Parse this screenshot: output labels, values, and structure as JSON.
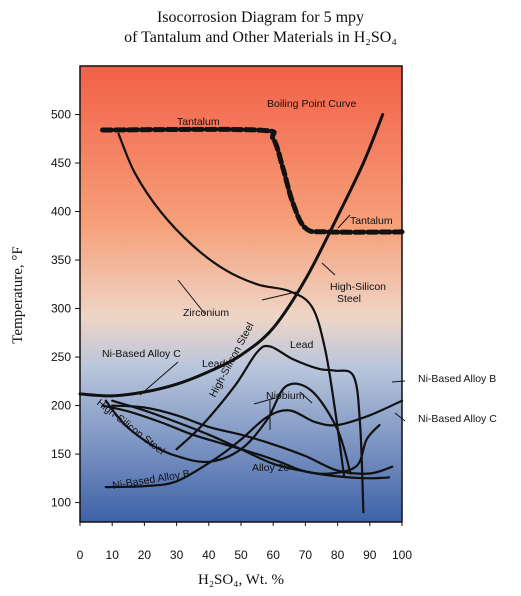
{
  "chart_data": {
    "type": "line",
    "title_line1": "Isocorrosion Diagram for 5 mpy",
    "title_line2": "of Tantalum and Other Materials in H₂SO₄",
    "xlabel": "H₂SO₄, Wt. %",
    "ylabel": "Temperature, °F",
    "xlim": [
      0,
      100
    ],
    "ylim": [
      80,
      550
    ],
    "xticks": [
      "0",
      "10",
      "20",
      "30",
      "40",
      "50",
      "60",
      "70",
      "80",
      "90",
      "100"
    ],
    "yticks": [
      "100",
      "150",
      "200",
      "250",
      "300",
      "350",
      "400",
      "450",
      "500"
    ],
    "background": {
      "top": "#f26048",
      "bottom": "#3e62a8"
    },
    "colors": {
      "curves": "#111111",
      "tantalum": "#1a2f9e"
    },
    "series": [
      {
        "id": "tantalum",
        "label": "Tantalum",
        "label2": "Tantalum",
        "points": [
          [
            7,
            484
          ],
          [
            55,
            484
          ],
          [
            60,
            475
          ],
          [
            63,
            445
          ],
          [
            66,
            410
          ],
          [
            70,
            383
          ],
          [
            77,
            379
          ],
          [
            100,
            379
          ]
        ]
      },
      {
        "id": "boiling",
        "label": "Boiling Point Curve",
        "points": [
          [
            0,
            212
          ],
          [
            10,
            210
          ],
          [
            20,
            214
          ],
          [
            30,
            222
          ],
          [
            40,
            235
          ],
          [
            50,
            252
          ],
          [
            60,
            280
          ],
          [
            70,
            330
          ],
          [
            80,
            395
          ],
          [
            88,
            450
          ],
          [
            94,
            500
          ]
        ]
      },
      {
        "id": "zirconium",
        "label": "Zirconium",
        "points": [
          [
            12,
            480
          ],
          [
            17,
            440
          ],
          [
            25,
            400
          ],
          [
            35,
            365
          ],
          [
            45,
            340
          ],
          [
            55,
            325
          ],
          [
            65,
            318
          ],
          [
            72,
            302
          ],
          [
            76,
            260
          ],
          [
            79,
            200
          ],
          [
            82,
            128
          ]
        ]
      },
      {
        "id": "lead",
        "label": "Lead",
        "label2": "Lead",
        "points": [
          [
            30,
            155
          ],
          [
            38,
            180
          ],
          [
            48,
            220
          ],
          [
            55,
            255
          ],
          [
            59,
            261
          ],
          [
            66,
            248
          ],
          [
            74,
            238
          ],
          [
            79,
            236
          ],
          [
            85,
            230
          ],
          [
            87,
            180
          ],
          [
            88,
            90
          ]
        ]
      },
      {
        "id": "hisi",
        "label": "High-Silicon Steel",
        "label2": "High-Silicon Steel",
        "label3": "High-Silicon Steel",
        "points": [
          [
            8,
            205
          ],
          [
            14,
            180
          ],
          [
            22,
            160
          ],
          [
            30,
            148
          ],
          [
            40,
            142
          ],
          [
            50,
            155
          ],
          [
            58,
            185
          ],
          [
            64,
            220
          ],
          [
            72,
            215
          ],
          [
            80,
            175
          ],
          [
            84,
            130
          ]
        ]
      },
      {
        "id": "nbAlloyB",
        "label": "Ni-Based Alloy B",
        "label2": "Ni-Based Alloy B",
        "points": [
          [
            8,
            116
          ],
          [
            20,
            117
          ],
          [
            30,
            122
          ],
          [
            42,
            145
          ],
          [
            50,
            165
          ],
          [
            58,
            188
          ],
          [
            65,
            195
          ],
          [
            73,
            183
          ],
          [
            80,
            180
          ],
          [
            90,
            190
          ],
          [
            100,
            205
          ]
        ]
      },
      {
        "id": "niAlloyC",
        "label": "Ni-Based Alloy C",
        "label2": "Ni-Based Alloy C",
        "points": [
          [
            7,
            200
          ],
          [
            15,
            194
          ],
          [
            25,
            183
          ],
          [
            35,
            170
          ],
          [
            45,
            160
          ],
          [
            55,
            150
          ],
          [
            62,
            142
          ],
          [
            70,
            132
          ],
          [
            78,
            130
          ],
          [
            86,
            138
          ],
          [
            89,
            165
          ],
          [
            93,
            180
          ]
        ]
      },
      {
        "id": "niobium",
        "label": "Niobium",
        "points": [
          [
            10,
            200
          ],
          [
            20,
            198
          ],
          [
            30,
            190
          ],
          [
            40,
            178
          ],
          [
            50,
            170
          ],
          [
            60,
            160
          ],
          [
            70,
            148
          ],
          [
            80,
            133
          ],
          [
            90,
            130
          ],
          [
            97,
            137
          ]
        ]
      },
      {
        "id": "alloy20",
        "label": "Alloy 20",
        "points": [
          [
            10,
            205
          ],
          [
            20,
            195
          ],
          [
            30,
            183
          ],
          [
            40,
            170
          ],
          [
            50,
            155
          ],
          [
            60,
            140
          ],
          [
            70,
            132
          ],
          [
            80,
            127
          ],
          [
            90,
            125
          ],
          [
            96,
            126
          ]
        ]
      }
    ]
  }
}
